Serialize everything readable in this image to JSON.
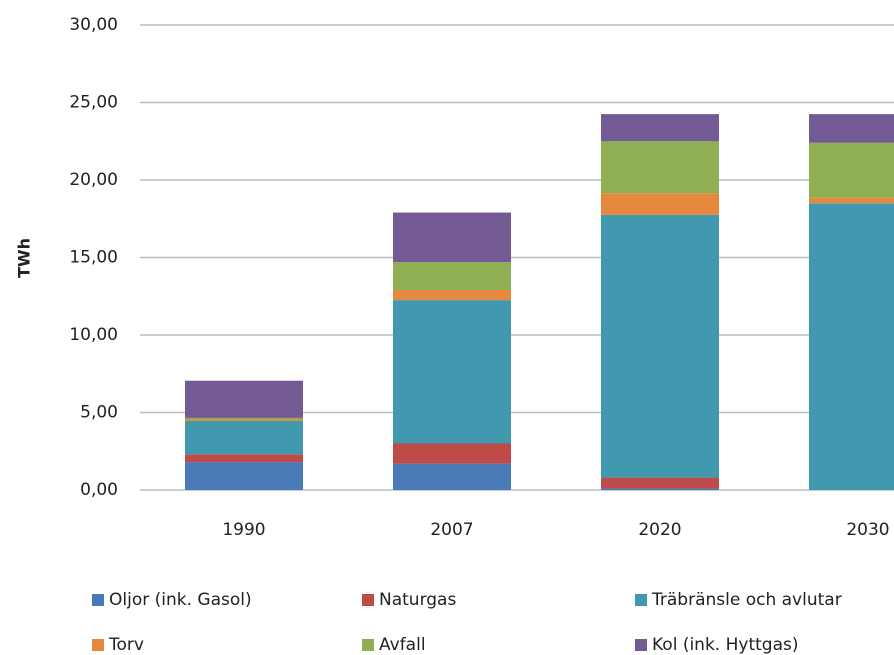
{
  "chart_data": {
    "type": "stacked_bar",
    "y_label": "TWh",
    "categories": [
      "1990",
      "2007",
      "2020",
      "2030"
    ],
    "series": [
      {
        "name": "Oljor (ink. Gasol)",
        "color": "#4a7ab8",
        "values": [
          1.8,
          1.7,
          0.1,
          0
        ]
      },
      {
        "name": "Naturgas",
        "color": "#be4b48",
        "values": [
          0.5,
          1.3,
          0.7,
          0
        ]
      },
      {
        "name": "Träbränsle och avlutar",
        "color": "#4199b0",
        "values": [
          2.15,
          9.25,
          16.95,
          18.5
        ]
      },
      {
        "name": "Torv",
        "color": "#e6883e",
        "values": [
          0.1,
          0.65,
          1.4,
          0.35
        ]
      },
      {
        "name": "Avfall",
        "color": "#8faf52",
        "values": [
          0.1,
          1.8,
          3.35,
          3.55
        ]
      },
      {
        "name": "Kol (ink. Hyttgas)",
        "color": "#735a95",
        "values": [
          2.4,
          3.2,
          1.75,
          1.85
        ]
      }
    ],
    "ylim": [
      0,
      30
    ],
    "yticks": [
      {
        "value": 0,
        "label": "0,00"
      },
      {
        "value": 5,
        "label": "5,00"
      },
      {
        "value": 10,
        "label": "10,00"
      },
      {
        "value": 15,
        "label": "15,00"
      },
      {
        "value": 20,
        "label": "20,00"
      },
      {
        "value": 25,
        "label": "25,00"
      },
      {
        "value": 30,
        "label": "30,00"
      }
    ],
    "grid": true
  }
}
